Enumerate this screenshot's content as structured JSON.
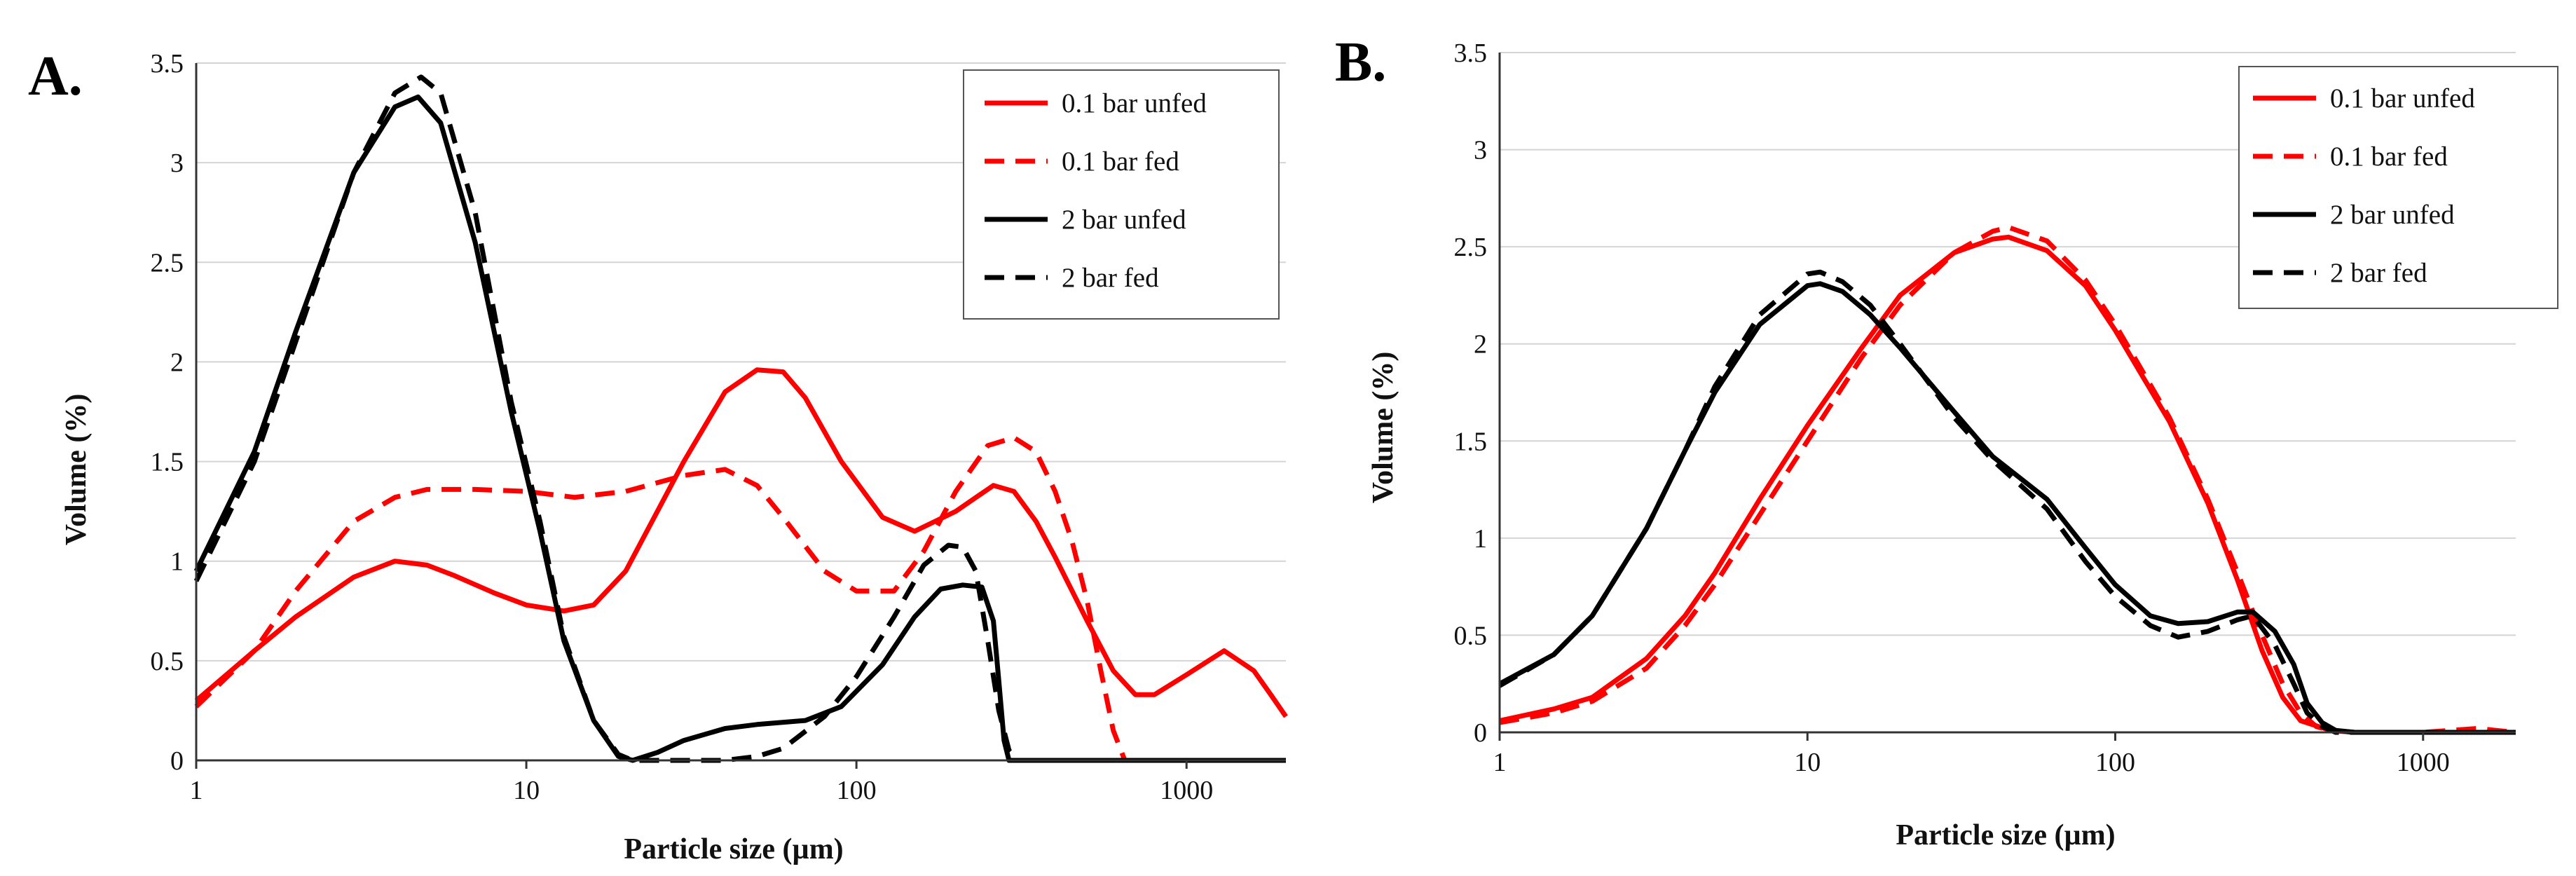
{
  "chart_data": [
    {
      "type": "line",
      "panel_label": "A.",
      "xlabel": "Particle size (µm)",
      "ylabel": "Volume (%)",
      "xscale": "log",
      "xlim": [
        1,
        2000
      ],
      "ylim": [
        0,
        3.5
      ],
      "x_ticks": [
        "1",
        "10",
        "100",
        "1000"
      ],
      "y_ticks": [
        "0",
        "0.5",
        "1",
        "1.5",
        "2",
        "2.5",
        "3",
        "3.5"
      ],
      "grid": "horizontal",
      "legend_position": "top-right",
      "series": [
        {
          "name": "0.1 bar unfed",
          "color": "#ff0000",
          "dash": "solid",
          "x": [
            1,
            1.5,
            2,
            3,
            4,
            5,
            6,
            8,
            10,
            13,
            16,
            20,
            30,
            40,
            50,
            60,
            70,
            90,
            120,
            150,
            200,
            260,
            300,
            350,
            400,
            500,
            600,
            700,
            800,
            1000,
            1300,
            1600,
            1800,
            2000
          ],
          "y": [
            0.3,
            0.55,
            0.72,
            0.92,
            1.0,
            0.98,
            0.93,
            0.84,
            0.78,
            0.75,
            0.78,
            0.95,
            1.5,
            1.85,
            1.96,
            1.95,
            1.82,
            1.5,
            1.22,
            1.15,
            1.25,
            1.38,
            1.35,
            1.2,
            1.02,
            0.7,
            0.45,
            0.33,
            0.33,
            0.43,
            0.55,
            0.45,
            0.33,
            0.22
          ]
        },
        {
          "name": "0.1 bar fed",
          "color": "#ff0000",
          "dash": "dashed",
          "x": [
            1,
            1.5,
            2,
            3,
            4,
            5,
            7,
            10,
            14,
            20,
            30,
            40,
            50,
            60,
            80,
            100,
            130,
            160,
            200,
            250,
            300,
            350,
            400,
            450,
            500,
            550,
            600,
            650,
            700,
            2000
          ],
          "y": [
            0.27,
            0.55,
            0.85,
            1.2,
            1.32,
            1.36,
            1.36,
            1.35,
            1.32,
            1.35,
            1.43,
            1.46,
            1.38,
            1.22,
            0.95,
            0.85,
            0.85,
            1.05,
            1.35,
            1.58,
            1.62,
            1.55,
            1.35,
            1.1,
            0.8,
            0.45,
            0.15,
            0.0,
            0.0,
            0.0
          ]
        },
        {
          "name": "2 bar unfed",
          "color": "#000000",
          "dash": "solid",
          "x": [
            1,
            1.5,
            2,
            3,
            4,
            4.7,
            5.5,
            7,
            9,
            11,
            13,
            16,
            19,
            21,
            25,
            30,
            40,
            50,
            70,
            90,
            120,
            150,
            180,
            210,
            240,
            260,
            270,
            280,
            290,
            300,
            400,
            1000,
            2000
          ],
          "y": [
            0.95,
            1.55,
            2.15,
            2.95,
            3.28,
            3.33,
            3.2,
            2.6,
            1.75,
            1.15,
            0.6,
            0.2,
            0.02,
            0.0,
            0.04,
            0.1,
            0.16,
            0.18,
            0.2,
            0.27,
            0.48,
            0.72,
            0.86,
            0.88,
            0.87,
            0.7,
            0.4,
            0.1,
            0.0,
            0.0,
            0.0,
            0.0,
            0.0
          ]
        },
        {
          "name": "2 bar fed",
          "color": "#000000",
          "dash": "dashed",
          "x": [
            1,
            1.5,
            2,
            3,
            4,
            4.8,
            5.5,
            7,
            9,
            11,
            13,
            16,
            19,
            21,
            25,
            30,
            40,
            50,
            60,
            80,
            100,
            130,
            160,
            190,
            210,
            230,
            250,
            270,
            290,
            310,
            400,
            1000,
            2000
          ],
          "y": [
            0.9,
            1.5,
            2.1,
            2.95,
            3.35,
            3.43,
            3.35,
            2.75,
            1.8,
            1.2,
            0.62,
            0.2,
            0.03,
            0.0,
            0.0,
            0.0,
            0.0,
            0.02,
            0.06,
            0.22,
            0.42,
            0.72,
            0.98,
            1.08,
            1.07,
            0.95,
            0.6,
            0.25,
            0.05,
            0.0,
            0.0,
            0.0,
            0.0
          ]
        }
      ]
    },
    {
      "type": "line",
      "panel_label": "B.",
      "xlabel": "Particle size (µm)",
      "ylabel": "Volume (%)",
      "xscale": "log",
      "xlim": [
        1,
        2000
      ],
      "ylim": [
        0,
        3.5
      ],
      "x_ticks": [
        "1",
        "10",
        "100",
        "1000"
      ],
      "y_ticks": [
        "0",
        "0.5",
        "1",
        "1.5",
        "2",
        "2.5",
        "3",
        "3.5"
      ],
      "grid": "horizontal",
      "legend_position": "top-right",
      "series": [
        {
          "name": "0.1 bar unfed",
          "color": "#ff0000",
          "dash": "solid",
          "x": [
            1,
            1.5,
            2,
            3,
            4,
            5,
            7,
            10,
            15,
            20,
            30,
            40,
            45,
            60,
            80,
            100,
            150,
            200,
            250,
            300,
            350,
            400,
            500,
            600,
            1000,
            2000
          ],
          "y": [
            0.06,
            0.12,
            0.18,
            0.38,
            0.6,
            0.82,
            1.2,
            1.58,
            1.98,
            2.25,
            2.47,
            2.54,
            2.55,
            2.48,
            2.3,
            2.07,
            1.6,
            1.18,
            0.78,
            0.42,
            0.18,
            0.06,
            0.01,
            0.0,
            0.0,
            0.0
          ]
        },
        {
          "name": "0.1 bar fed",
          "color": "#ff0000",
          "dash": "dashed",
          "x": [
            1,
            1.5,
            2,
            3,
            4,
            5,
            7,
            10,
            15,
            20,
            30,
            40,
            45,
            60,
            80,
            100,
            150,
            200,
            250,
            300,
            350,
            400,
            450,
            500,
            600,
            1000,
            1500,
            2000
          ],
          "y": [
            0.05,
            0.1,
            0.16,
            0.33,
            0.55,
            0.76,
            1.12,
            1.5,
            1.93,
            2.2,
            2.47,
            2.58,
            2.6,
            2.53,
            2.33,
            2.1,
            1.62,
            1.2,
            0.82,
            0.5,
            0.25,
            0.1,
            0.03,
            0.01,
            0.0,
            0.0,
            0.02,
            0.0
          ]
        },
        {
          "name": "2 bar unfed",
          "color": "#000000",
          "dash": "solid",
          "x": [
            1,
            1.5,
            2,
            3,
            4,
            5,
            7,
            10,
            11,
            13,
            16,
            20,
            30,
            40,
            60,
            80,
            100,
            130,
            160,
            200,
            250,
            280,
            330,
            380,
            420,
            470,
            520,
            600,
            2000
          ],
          "y": [
            0.25,
            0.4,
            0.6,
            1.05,
            1.45,
            1.75,
            2.1,
            2.3,
            2.31,
            2.27,
            2.15,
            1.98,
            1.65,
            1.42,
            1.2,
            0.95,
            0.76,
            0.6,
            0.56,
            0.57,
            0.62,
            0.62,
            0.52,
            0.35,
            0.15,
            0.05,
            0.01,
            0.0,
            0.0
          ]
        },
        {
          "name": "2 bar fed",
          "color": "#000000",
          "dash": "dashed",
          "x": [
            1,
            1.5,
            2,
            3,
            4,
            5,
            7,
            10,
            11,
            13,
            16,
            20,
            30,
            40,
            60,
            80,
            100,
            130,
            160,
            200,
            250,
            280,
            330,
            380,
            420,
            470,
            520,
            600,
            2000
          ],
          "y": [
            0.24,
            0.4,
            0.6,
            1.05,
            1.45,
            1.78,
            2.15,
            2.36,
            2.37,
            2.32,
            2.2,
            2.0,
            1.62,
            1.4,
            1.15,
            0.88,
            0.7,
            0.55,
            0.49,
            0.52,
            0.58,
            0.6,
            0.45,
            0.25,
            0.1,
            0.03,
            0.0,
            0.0,
            0.0
          ]
        }
      ]
    }
  ]
}
